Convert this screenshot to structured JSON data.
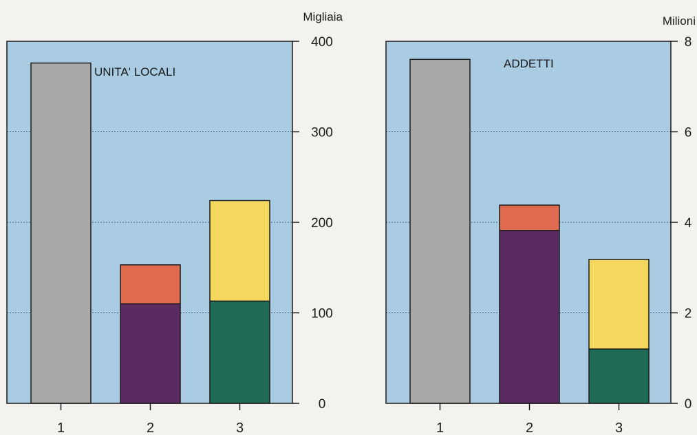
{
  "chart_data": [
    {
      "type": "bar",
      "stacked": true,
      "title": "UNITA' LOCALI",
      "unit_label": "Migliaia",
      "categories": [
        "1",
        "2",
        "3"
      ],
      "yticks": [
        "0",
        "100",
        "200",
        "300",
        "400"
      ],
      "ylim": [
        0,
        400
      ],
      "grid": true,
      "axis_side": "right",
      "bars": [
        {
          "category": "1",
          "segments": [
            {
              "value": 376,
              "color": "#a8a8a8"
            }
          ]
        },
        {
          "category": "2",
          "segments": [
            {
              "value": 110,
              "color": "#5b2a63"
            },
            {
              "value": 43,
              "color": "#e06b4e"
            }
          ]
        },
        {
          "category": "3",
          "segments": [
            {
              "value": 113,
              "color": "#1f6b55"
            },
            {
              "value": 111,
              "color": "#f5d75e"
            }
          ]
        }
      ]
    },
    {
      "type": "bar",
      "stacked": true,
      "title": "ADDETTI",
      "unit_label": "Milioni",
      "categories": [
        "1",
        "2",
        "3"
      ],
      "yticks": [
        "0",
        "2",
        "4",
        "6",
        "8"
      ],
      "ylim": [
        0,
        8
      ],
      "grid": true,
      "axis_side": "right",
      "bars": [
        {
          "category": "1",
          "segments": [
            {
              "value": 7.6,
              "color": "#a8a8a8"
            }
          ]
        },
        {
          "category": "2",
          "segments": [
            {
              "value": 3.82,
              "color": "#5b2a63"
            },
            {
              "value": 0.56,
              "color": "#e06b4e"
            }
          ]
        },
        {
          "category": "3",
          "segments": [
            {
              "value": 1.2,
              "color": "#1f6b55"
            },
            {
              "value": 1.98,
              "color": "#f5d75e"
            }
          ]
        }
      ]
    }
  ],
  "colors": {
    "panel_background": "#a9cce3",
    "grid_line": "#3f5f78",
    "bar_outline": "#1a1a1a"
  }
}
